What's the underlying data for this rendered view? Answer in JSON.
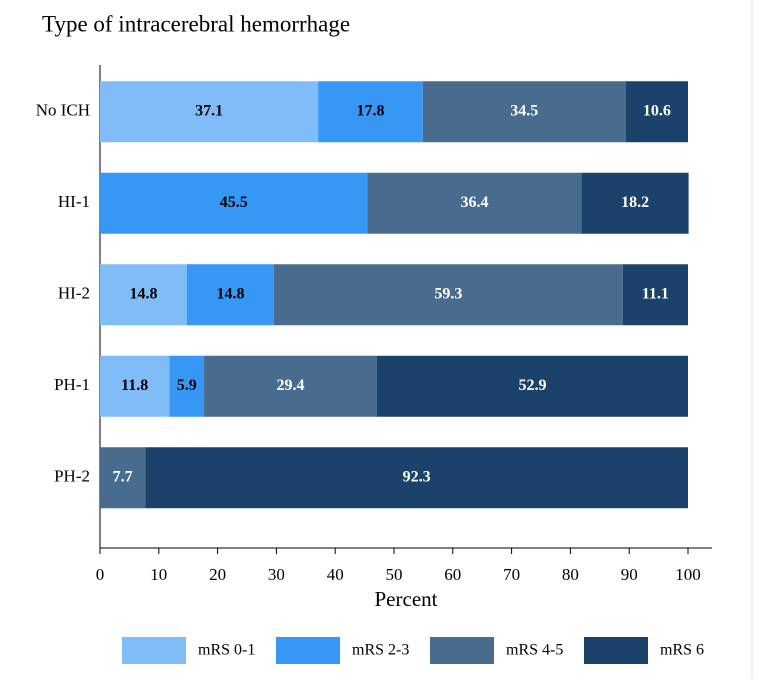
{
  "chart_data": {
    "type": "stacked-barh",
    "title": "Type of intracerebral hemorrhage",
    "x_label": "Percent",
    "categories": [
      "No ICH",
      "HI-1",
      "HI-2",
      "PH-1",
      "PH-2"
    ],
    "series": [
      {
        "name": "mRS 0-1",
        "color": "#80bdf8",
        "label_color": "#000000",
        "values": [
          37.1,
          null,
          14.8,
          11.8,
          null
        ]
      },
      {
        "name": "mRS 2-3",
        "color": "#3797f5",
        "label_color": "#000000",
        "values": [
          17.8,
          45.5,
          14.8,
          5.9,
          null
        ]
      },
      {
        "name": "mRS 4-5",
        "color": "#486b8e",
        "label_color": "#ffffff",
        "values": [
          34.5,
          36.4,
          59.3,
          29.4,
          7.7
        ]
      },
      {
        "name": "mRS 6",
        "color": "#1b426a",
        "label_color": "#ffffff",
        "values": [
          10.6,
          18.2,
          11.1,
          52.9,
          92.3
        ]
      }
    ],
    "xlim": [
      0,
      100
    ],
    "xticks": [
      0,
      10,
      20,
      30,
      40,
      50,
      60,
      70,
      80,
      90,
      100
    ],
    "legend": "bottom"
  }
}
